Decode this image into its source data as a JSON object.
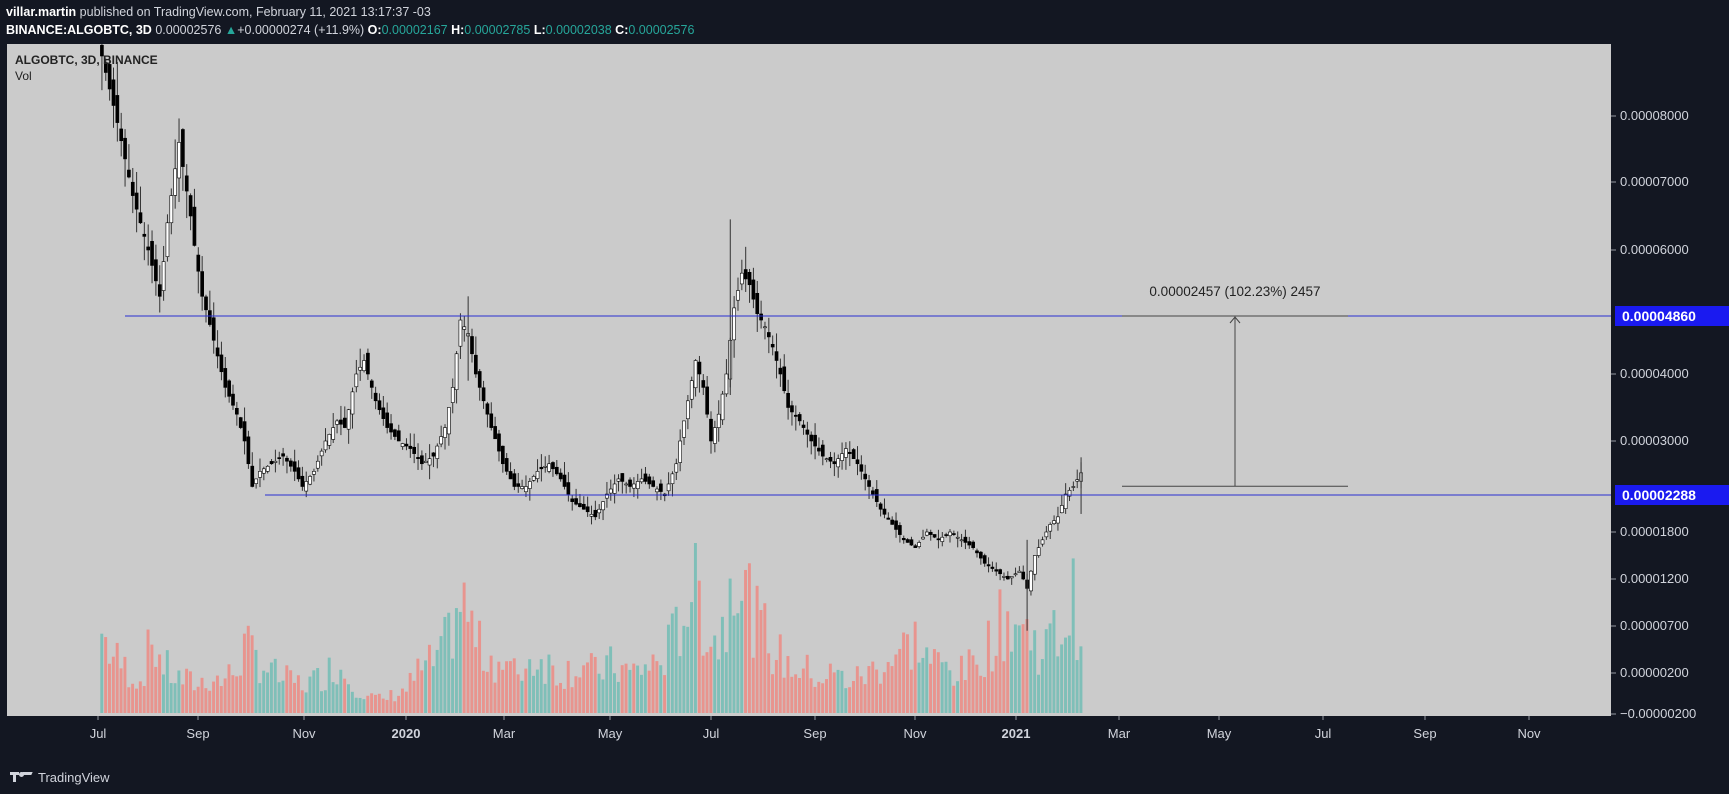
{
  "header": {
    "author": "villar.martin",
    "published": "published on TradingView.com, February 11, 2021 13:17:37 -03",
    "symbol": "BINANCE:ALGOBTC, 3D",
    "last": "0.00002576",
    "change": "+0.00000274 (+11.9%)",
    "o_label": "O:",
    "o": "0.00002167",
    "h_label": "H:",
    "h": "0.00002785",
    "l_label": "L:",
    "l": "0.00002038",
    "c_label": "C:",
    "c": "0.00002576"
  },
  "footer": {
    "brand": "TradingView"
  },
  "colors": {
    "bg": "#cbcbcb",
    "candle": "#000000",
    "wick": "#333333",
    "vol_up": "#7fbfb8",
    "vol_down": "#e8948e",
    "hline": "#2a2fd1",
    "badge": "#1a1af0",
    "axis_text": "#222222"
  },
  "chart_data": {
    "type": "candlestick",
    "legend": [
      "ALGOBTC, 3D, BINANCE",
      "Vol"
    ],
    "scale": "log",
    "ylim": [
      -2e-06,
      9.2e-05
    ],
    "y_ticks": [
      {
        "v": 8e-05,
        "label": "0.00008000"
      },
      {
        "v": 7e-05,
        "label": "0.00007000"
      },
      {
        "v": 6e-05,
        "label": "0.00006000"
      },
      {
        "v": 4e-05,
        "label": "0.00004000"
      },
      {
        "v": 3e-05,
        "label": "0.00003000"
      },
      {
        "v": 1.8e-05,
        "label": "0.00001800"
      },
      {
        "v": 1.2e-05,
        "label": "0.00001200"
      },
      {
        "v": 7e-06,
        "label": "0.00000700"
      },
      {
        "v": 2e-06,
        "label": "0.00000200"
      },
      {
        "v": -2e-06,
        "label": "−0.00000200"
      }
    ],
    "x_ticks": [
      {
        "label": "Jul",
        "bold": false
      },
      {
        "label": "Sep",
        "bold": false
      },
      {
        "label": "Nov",
        "bold": false
      },
      {
        "label": "2020",
        "bold": true
      },
      {
        "label": "Mar",
        "bold": false
      },
      {
        "label": "May",
        "bold": false
      },
      {
        "label": "Jul",
        "bold": false
      },
      {
        "label": "Sep",
        "bold": false
      },
      {
        "label": "Nov",
        "bold": false
      },
      {
        "label": "2021",
        "bold": true
      },
      {
        "label": "Mar",
        "bold": false
      },
      {
        "label": "May",
        "bold": false
      },
      {
        "label": "Jul",
        "bold": false
      },
      {
        "label": "Sep",
        "bold": false
      },
      {
        "label": "Nov",
        "bold": false
      }
    ],
    "hlines": [
      {
        "value": 4.86e-05,
        "label": "0.00004860"
      },
      {
        "value": 2.288e-05,
        "label": "0.00002288"
      }
    ],
    "measure": {
      "from": 2.403e-05,
      "to": 4.86e-05,
      "label": "0.00002457 (102.23%) 2457"
    },
    "close_path": [
      [
        0,
        9e-05
      ],
      [
        4,
        7.9e-05
      ],
      [
        8,
        6.8e-05
      ],
      [
        12,
        6e-05
      ],
      [
        15,
        5.2e-05
      ],
      [
        17,
        6.4e-05
      ],
      [
        20,
        7.6e-05
      ],
      [
        23,
        6.5e-05
      ],
      [
        26,
        5.2e-05
      ],
      [
        29,
        4.5e-05
      ],
      [
        32,
        3.8e-05
      ],
      [
        35,
        3.4e-05
      ],
      [
        37,
        3e-05
      ],
      [
        39,
        2.4e-05
      ],
      [
        41,
        2.6e-05
      ],
      [
        44,
        2.7e-05
      ],
      [
        47,
        2.8e-05
      ],
      [
        50,
        2.6e-05
      ],
      [
        52,
        2.4e-05
      ],
      [
        55,
        2.6e-05
      ],
      [
        58,
        3e-05
      ],
      [
        61,
        3.3e-05
      ],
      [
        63,
        3.2e-05
      ],
      [
        66,
        4e-05
      ],
      [
        68,
        4.2e-05
      ],
      [
        71,
        3.6e-05
      ],
      [
        74,
        3.2e-05
      ],
      [
        77,
        3e-05
      ],
      [
        80,
        2.9e-05
      ],
      [
        83,
        2.7e-05
      ],
      [
        86,
        2.8e-05
      ],
      [
        89,
        3.2e-05
      ],
      [
        91,
        3.8e-05
      ],
      [
        93,
        4.8e-05
      ],
      [
        95,
        4.6e-05
      ],
      [
        97,
        4e-05
      ],
      [
        99,
        3.6e-05
      ],
      [
        101,
        3.2e-05
      ],
      [
        104,
        2.7e-05
      ],
      [
        107,
        2.4e-05
      ],
      [
        110,
        2.4e-05
      ],
      [
        113,
        2.6e-05
      ],
      [
        116,
        2.7e-05
      ],
      [
        119,
        2.5e-05
      ],
      [
        122,
        2.2e-05
      ],
      [
        125,
        2.1e-05
      ],
      [
        128,
        2e-05
      ],
      [
        131,
        2.3e-05
      ],
      [
        134,
        2.5e-05
      ],
      [
        137,
        2.4e-05
      ],
      [
        140,
        2.5e-05
      ],
      [
        143,
        2.4e-05
      ],
      [
        146,
        2.3e-05
      ],
      [
        149,
        2.7e-05
      ],
      [
        152,
        3.6e-05
      ],
      [
        154,
        4.2e-05
      ],
      [
        156,
        3.8e-05
      ],
      [
        158,
        3e-05
      ],
      [
        160,
        3.4e-05
      ],
      [
        162,
        4e-05
      ],
      [
        164,
        5e-05
      ],
      [
        166,
        5.6e-05
      ],
      [
        168,
        5.4e-05
      ],
      [
        170,
        4.9e-05
      ],
      [
        172,
        4.7e-05
      ],
      [
        174,
        4.4e-05
      ],
      [
        176,
        4e-05
      ],
      [
        178,
        3.5e-05
      ],
      [
        181,
        3.3e-05
      ],
      [
        184,
        3e-05
      ],
      [
        187,
        2.8e-05
      ],
      [
        190,
        2.7e-05
      ],
      [
        193,
        2.9e-05
      ],
      [
        196,
        2.7e-05
      ],
      [
        199,
        2.4e-05
      ],
      [
        202,
        2.1e-05
      ],
      [
        205,
        1.9e-05
      ],
      [
        208,
        1.7e-05
      ],
      [
        211,
        1.6e-05
      ],
      [
        214,
        1.8e-05
      ],
      [
        217,
        1.7e-05
      ],
      [
        220,
        1.8e-05
      ],
      [
        223,
        1.7e-05
      ],
      [
        226,
        1.6e-05
      ],
      [
        229,
        1.4e-05
      ],
      [
        232,
        1.3e-05
      ],
      [
        235,
        1.2e-05
      ],
      [
        238,
        1.3e-05
      ],
      [
        240,
        1.1e-05
      ],
      [
        242,
        1.5e-05
      ],
      [
        244,
        1.7e-05
      ],
      [
        246,
        1.9e-05
      ],
      [
        248,
        2e-05
      ],
      [
        250,
        2.3e-05
      ],
      [
        252,
        2.4e-05
      ],
      [
        254,
        2.58e-05
      ]
    ],
    "volume_shape": [
      [
        0,
        0.05
      ],
      [
        3,
        0.035
      ],
      [
        6,
        0.028
      ],
      [
        10,
        0.02
      ],
      [
        13,
        0.045
      ],
      [
        16,
        0.03
      ],
      [
        19,
        0.022
      ],
      [
        22,
        0.02
      ],
      [
        25,
        0.018
      ],
      [
        28,
        0.022
      ],
      [
        31,
        0.02
      ],
      [
        34,
        0.025
      ],
      [
        37,
        0.04
      ],
      [
        40,
        0.035
      ],
      [
        43,
        0.028
      ],
      [
        46,
        0.022
      ],
      [
        49,
        0.02
      ],
      [
        52,
        0.018
      ],
      [
        55,
        0.02
      ],
      [
        58,
        0.025
      ],
      [
        61,
        0.03
      ],
      [
        64,
        0.022
      ],
      [
        67,
        0.015
      ],
      [
        70,
        0.01
      ],
      [
        73,
        0.008
      ],
      [
        76,
        0.012
      ],
      [
        79,
        0.015
      ],
      [
        82,
        0.025
      ],
      [
        85,
        0.03
      ],
      [
        88,
        0.035
      ],
      [
        91,
        0.055
      ],
      [
        93,
        0.07
      ],
      [
        95,
        0.06
      ],
      [
        98,
        0.04
      ],
      [
        101,
        0.035
      ],
      [
        104,
        0.03
      ],
      [
        107,
        0.025
      ],
      [
        110,
        0.03
      ],
      [
        113,
        0.035
      ],
      [
        116,
        0.03
      ],
      [
        119,
        0.025
      ],
      [
        122,
        0.028
      ],
      [
        125,
        0.03
      ],
      [
        128,
        0.025
      ],
      [
        131,
        0.03
      ],
      [
        134,
        0.028
      ],
      [
        137,
        0.025
      ],
      [
        140,
        0.028
      ],
      [
        143,
        0.03
      ],
      [
        146,
        0.035
      ],
      [
        149,
        0.05
      ],
      [
        152,
        0.07
      ],
      [
        154,
        0.09
      ],
      [
        156,
        0.06
      ],
      [
        158,
        0.05
      ],
      [
        160,
        0.045
      ],
      [
        162,
        0.06
      ],
      [
        164,
        0.11
      ],
      [
        166,
        0.085
      ],
      [
        168,
        0.07
      ],
      [
        170,
        0.055
      ],
      [
        172,
        0.05
      ],
      [
        174,
        0.04
      ],
      [
        176,
        0.035
      ],
      [
        178,
        0.03
      ],
      [
        181,
        0.028
      ],
      [
        184,
        0.025
      ],
      [
        187,
        0.022
      ],
      [
        190,
        0.025
      ],
      [
        193,
        0.02
      ],
      [
        196,
        0.022
      ],
      [
        199,
        0.025
      ],
      [
        202,
        0.03
      ],
      [
        205,
        0.035
      ],
      [
        208,
        0.04
      ],
      [
        211,
        0.045
      ],
      [
        214,
        0.035
      ],
      [
        217,
        0.03
      ],
      [
        220,
        0.028
      ],
      [
        223,
        0.025
      ],
      [
        226,
        0.03
      ],
      [
        229,
        0.04
      ],
      [
        232,
        0.05
      ],
      [
        235,
        0.06
      ],
      [
        238,
        0.055
      ],
      [
        240,
        0.05
      ],
      [
        242,
        0.045
      ],
      [
        244,
        0.04
      ],
      [
        246,
        0.045
      ],
      [
        248,
        0.05
      ],
      [
        250,
        0.055
      ],
      [
        252,
        0.07
      ],
      [
        254,
        0.05
      ]
    ]
  }
}
